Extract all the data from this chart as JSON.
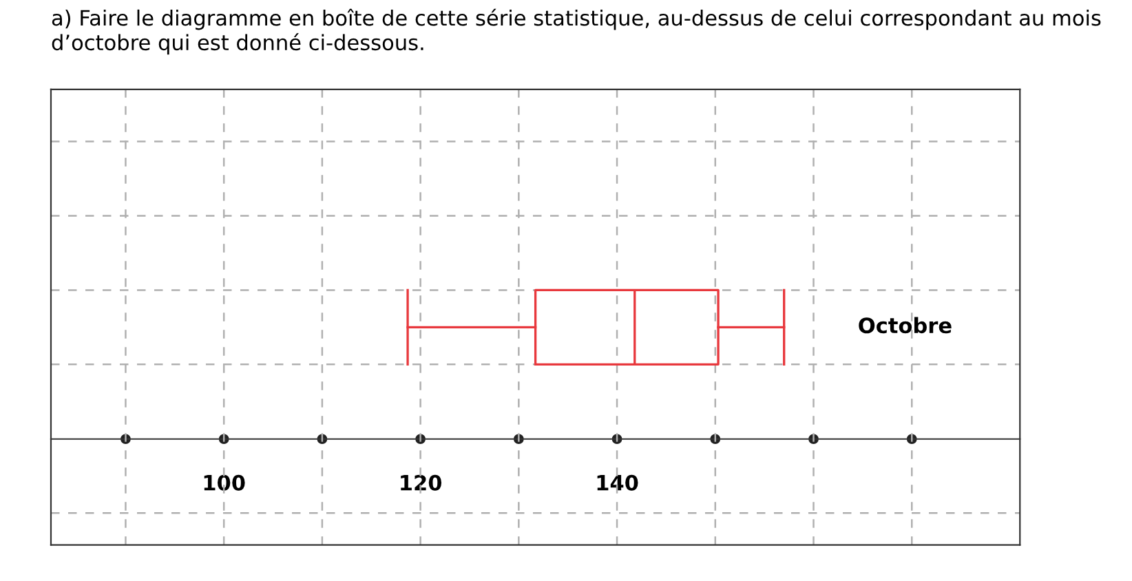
{
  "chart_data": {
    "type": "box",
    "orientation": "horizontal",
    "title": "a) Faire le diagramme en boîte de cette série statistique, au-dessus de celui correspondant au mois d’octobre qui est donné ci-dessous.",
    "categories": [
      "Octobre"
    ],
    "boxes": [
      {
        "low": 118.7,
        "q1": 131.7,
        "median": 141.8,
        "q3": 150.3,
        "high": 157
      }
    ],
    "color": "#e8383d",
    "xlim": [
      82.4,
      181
    ],
    "xticks": [
      {
        "value": 90,
        "label": null
      },
      100,
      {
        "value": 110,
        "label": null
      },
      120,
      {
        "value": 130,
        "label": null
      },
      140,
      {
        "value": 150,
        "label": null
      },
      {
        "value": 160,
        "label": null
      },
      {
        "value": 170,
        "label": null
      }
    ],
    "grid": true
  }
}
